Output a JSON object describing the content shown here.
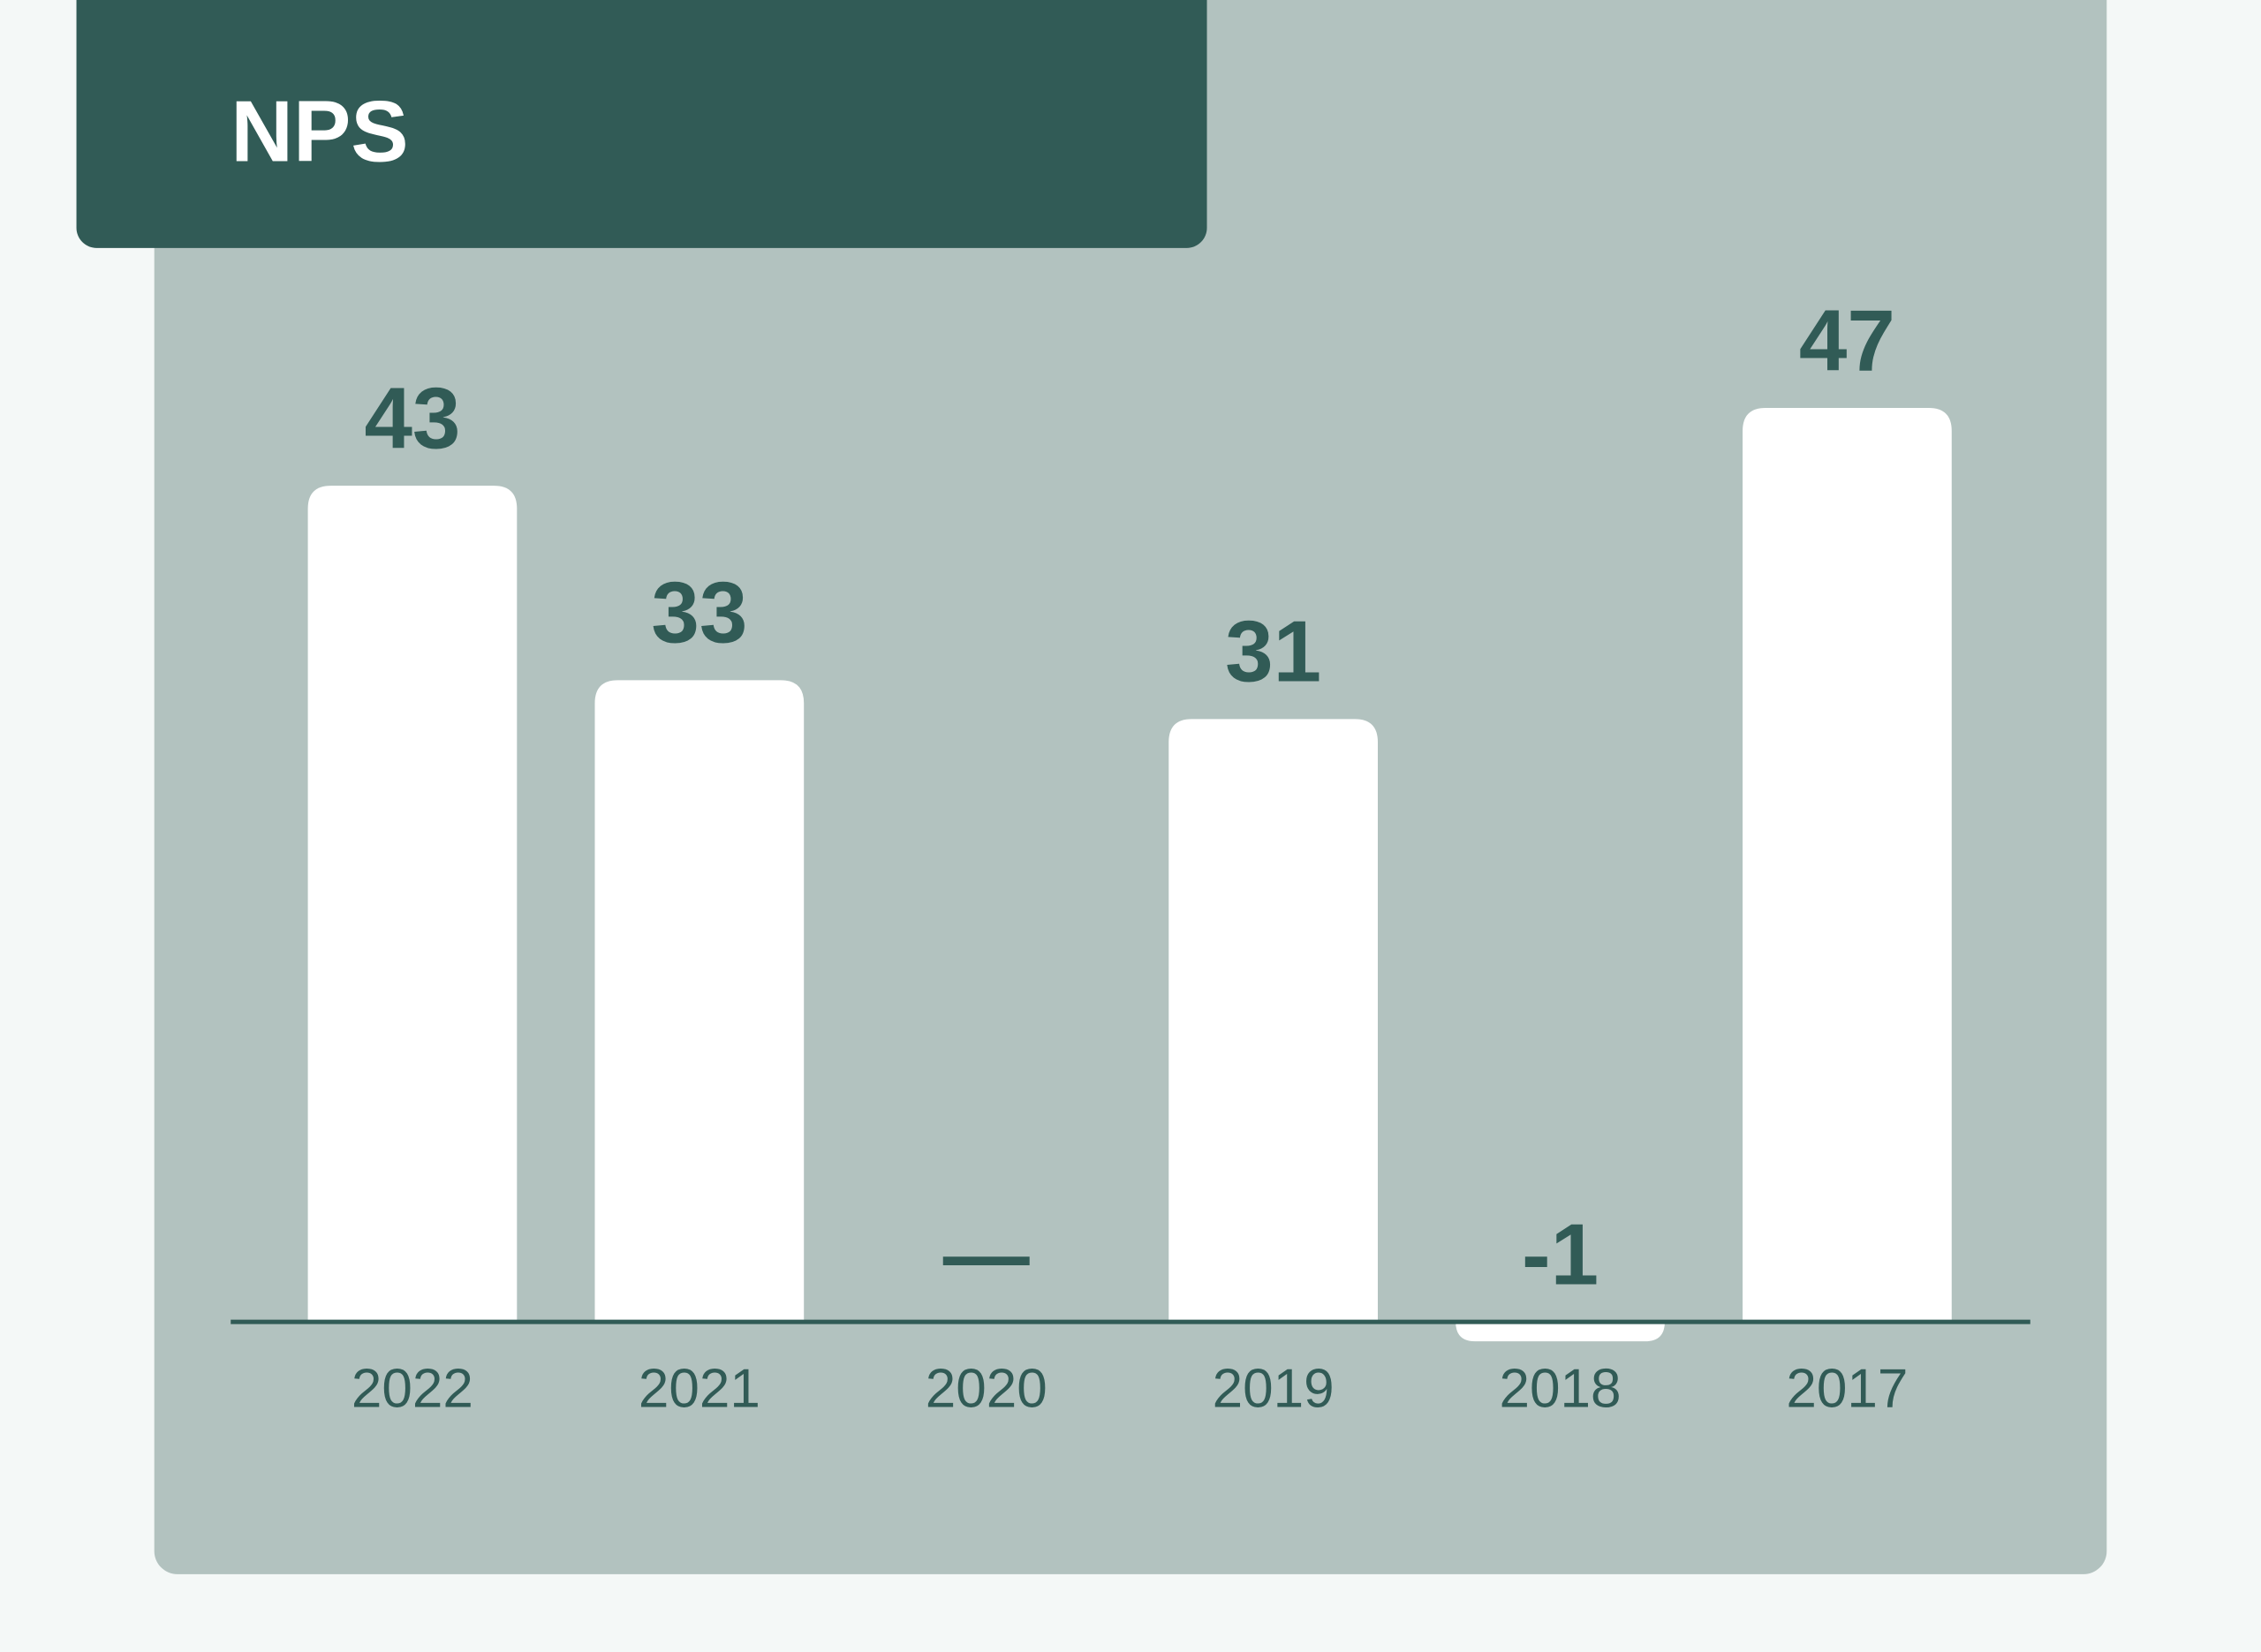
{
  "chart_data": {
    "type": "bar",
    "title": "NPS",
    "categories": [
      "2022",
      "2021",
      "2020",
      "2019",
      "2018",
      "2017"
    ],
    "values": [
      43,
      33,
      null,
      31,
      -1,
      47
    ],
    "value_labels": [
      "43",
      "33",
      "—",
      "31",
      "-1",
      "47"
    ],
    "color": "#ffffff"
  }
}
